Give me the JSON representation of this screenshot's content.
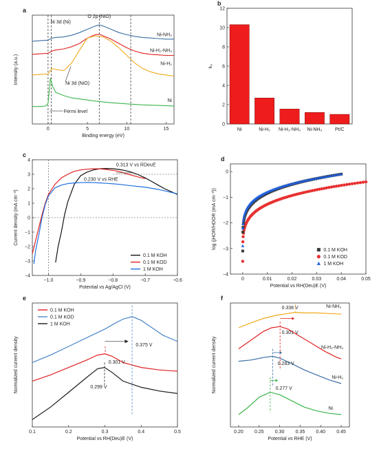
{
  "panels": [
    {
      "id": "a",
      "label": "a",
      "type": "line",
      "xlabel": "Binding energy (eV)",
      "ylabel": "Intensity (a.u.)",
      "xlim": [
        -2,
        16
      ],
      "ylim": [
        0,
        10
      ],
      "xticks": [
        "0",
        "5",
        "10",
        "15"
      ],
      "annotations": [
        "Ni 3d (Ni)",
        "O 2p (NiO)",
        "Ni 3d (NiO)",
        "Fermi level"
      ],
      "series": [
        {
          "name": "Ni-NH3",
          "label": "Ni-NH₃",
          "color": "#3b6ea5",
          "x": [
            -2,
            -1,
            0,
            0.5,
            1,
            2,
            3,
            4,
            5,
            6,
            6.5,
            7,
            8,
            9,
            10,
            11,
            12,
            13,
            14,
            15,
            16
          ],
          "y": [
            7.6,
            7.65,
            7.7,
            7.9,
            7.95,
            8.0,
            8.15,
            8.4,
            8.7,
            9.0,
            9.1,
            9.0,
            8.7,
            8.4,
            8.2,
            8.05,
            7.95,
            7.9,
            7.85,
            7.8,
            7.8
          ]
        },
        {
          "name": "Ni-H2-NH3",
          "label": "Ni-H₂-NH₃",
          "color": "#e02020",
          "x": [
            -2,
            -1,
            0,
            0.5,
            1,
            2,
            3,
            4,
            5,
            6,
            6.5,
            7,
            8,
            9,
            10,
            11,
            12,
            13,
            14,
            15,
            16
          ],
          "y": [
            6.4,
            6.45,
            6.5,
            6.7,
            6.8,
            6.9,
            7.1,
            7.4,
            7.9,
            8.2,
            8.25,
            8.1,
            7.8,
            7.4,
            7.0,
            6.7,
            6.5,
            6.4,
            6.35,
            6.3,
            6.3
          ]
        },
        {
          "name": "Ni-H2",
          "label": "Ni-H₂",
          "color": "#f0a818",
          "x": [
            -2,
            -1,
            0,
            0.5,
            1,
            2,
            3,
            4,
            5,
            6,
            7,
            8,
            9,
            10,
            11,
            12,
            13,
            14,
            15,
            16
          ],
          "y": [
            4.5,
            4.55,
            4.6,
            5.1,
            5.0,
            4.9,
            5.6,
            6.8,
            7.9,
            8.1,
            8.0,
            7.6,
            7.0,
            6.3,
            5.6,
            5.1,
            4.8,
            4.6,
            4.5,
            4.4
          ]
        },
        {
          "name": "Ni",
          "label": "Ni",
          "color": "#3cb44b",
          "x": [
            -2,
            -1,
            -0.3,
            0,
            0.3,
            0.6,
            1,
            2,
            3,
            4,
            5,
            6,
            8,
            10,
            12,
            14,
            16
          ],
          "y": [
            1.6,
            1.6,
            1.65,
            1.9,
            4.2,
            3.4,
            2.9,
            2.6,
            2.4,
            2.3,
            2.2,
            2.1,
            1.95,
            1.85,
            1.75,
            1.7,
            1.65
          ]
        }
      ],
      "vlines": [
        {
          "x": 0,
          "color": "#222"
        },
        {
          "x": 0.4,
          "color": "#222"
        },
        {
          "x": 6.5,
          "color": "#222"
        },
        {
          "x": 10.5,
          "color": "#222"
        }
      ]
    },
    {
      "id": "b",
      "label": "b",
      "type": "bar",
      "ylabel": "k₀",
      "ylim": [
        0,
        12
      ],
      "yticks": [
        "0",
        "2",
        "4",
        "6",
        "8",
        "10",
        "12"
      ],
      "categories": [
        "Ni",
        "Ni-H₂",
        "Ni-H₂-NH₃",
        "Ni-NH₃",
        "Pt/C"
      ],
      "values": [
        10.3,
        2.7,
        1.55,
        1.2,
        1.0
      ],
      "bar_color": "#ee1c1c"
    },
    {
      "id": "c",
      "label": "c",
      "type": "line",
      "xlabel": "Potential vs Ag/AgCl (V)",
      "ylabel": "Current density (mA cm⁻²)",
      "xlim": [
        -1.05,
        -0.6
      ],
      "ylim": [
        -4,
        4
      ],
      "xticks": [
        "−1.0",
        "−0.9",
        "−0.8",
        "−0.7",
        "−0.6"
      ],
      "yticks": [
        "−4",
        "−3",
        "−2",
        "−1",
        "0",
        "1",
        "2",
        "3",
        "4"
      ],
      "annotations": [
        "0.313 V vs RDeuE",
        "0.230 V vs RHE"
      ],
      "legend_position": "bottom-right",
      "series": [
        {
          "name": "0.1 M KOH",
          "color": "#111111",
          "x": [
            -0.978,
            -0.97,
            -0.96,
            -0.95,
            -0.94,
            -0.92,
            -0.9,
            -0.88,
            -0.86,
            -0.84,
            -0.82,
            -0.8,
            -0.78,
            -0.76,
            -0.74,
            -0.72,
            -0.7,
            -0.68,
            -0.66,
            -0.64,
            -0.62,
            -0.6
          ],
          "y": [
            -3.1,
            -2.0,
            -1.0,
            0.2,
            1.1,
            2.3,
            2.9,
            3.15,
            3.3,
            3.38,
            3.4,
            3.38,
            3.33,
            3.25,
            3.12,
            2.95,
            2.75,
            2.5,
            2.25,
            2.0,
            1.8,
            1.6
          ]
        },
        {
          "name": "0.1 M KOD",
          "color": "#e02020",
          "x": [
            -1.05,
            -1.04,
            -1.03,
            -1.02,
            -1.01,
            -1.0,
            -0.98,
            -0.96,
            -0.94,
            -0.92,
            -0.9,
            -0.88,
            -0.86,
            -0.84,
            -0.82,
            -0.8,
            -0.78,
            -0.76,
            -0.74,
            -0.72,
            -0.7
          ],
          "y": [
            -2.5,
            -1.6,
            -0.7,
            0.2,
            1.0,
            1.6,
            2.3,
            2.75,
            3.0,
            3.2,
            3.3,
            3.35,
            3.38,
            3.37,
            3.33,
            3.27,
            3.18,
            3.05,
            2.92,
            2.8,
            2.7
          ]
        },
        {
          "name": "1 M KOH",
          "color": "#1f6fe0",
          "x": [
            -1.045,
            -1.04,
            -1.03,
            -1.02,
            -1.01,
            -1.0,
            -0.98,
            -0.96,
            -0.94,
            -0.92,
            -0.9,
            -0.88,
            -0.86,
            -0.84,
            -0.82,
            -0.8,
            -0.78,
            -0.76,
            -0.74,
            -0.72,
            -0.7,
            -0.68,
            -0.66,
            -0.64,
            -0.62,
            -0.6
          ],
          "y": [
            -3.2,
            -2.3,
            -1.2,
            0.0,
            0.9,
            1.5,
            2.05,
            2.25,
            2.35,
            2.4,
            2.42,
            2.43,
            2.42,
            2.4,
            2.37,
            2.34,
            2.3,
            2.25,
            2.2,
            2.15,
            2.1,
            2.03,
            1.95,
            1.85,
            1.75,
            1.65
          ]
        }
      ],
      "dashed_lines": [
        {
          "type": "h",
          "y": 0,
          "color": "#444"
        },
        {
          "type": "v",
          "x": -1.0,
          "color": "#444"
        },
        {
          "type": "h",
          "y": 3.0,
          "x_start": -0.8,
          "color": "#444"
        }
      ]
    },
    {
      "id": "d",
      "label": "d",
      "type": "scatter",
      "xlabel": "Potential vs RH(Deu)E (V)",
      "ylabel": "log (jHOR/HDOR (mA cm⁻²))",
      "xlim": [
        -0.005,
        0.05
      ],
      "ylim": [
        -4,
        0.3
      ],
      "xticks": [
        "0",
        "0.01",
        "0.02",
        "0.03",
        "0.04",
        "0.05"
      ],
      "yticks": [
        "−4",
        "−3",
        "−2",
        "−1",
        "0"
      ],
      "legend_position": "bottom-right",
      "series": [
        {
          "name": "0.1 M KOH",
          "color": "#3a3a3a",
          "marker": "square",
          "x_max": 0.04,
          "y_end": -0.1,
          "y_start": -3.1
        },
        {
          "name": "0.1 M KOD",
          "color": "#e83030",
          "marker": "circle",
          "x_max": 0.05,
          "y_end": -0.4,
          "y_start": -3.5
        },
        {
          "name": "1 M KOH",
          "color": "#2060e0",
          "marker": "triangle",
          "x_max": 0.04,
          "y_end": -0.1,
          "y_start": -2.9
        }
      ]
    },
    {
      "id": "e",
      "label": "e",
      "type": "line",
      "xlabel": "Potential vs RH(Deu)E (V)",
      "ylabel": "Normalized current density",
      "xlim": [
        0.1,
        0.5
      ],
      "ylim": [
        0,
        10
      ],
      "xticks": [
        "0.1",
        "0.2",
        "0.3",
        "0.4",
        "0.5"
      ],
      "annotations": [
        "0.375 V",
        "0.301 V",
        "0.299 V"
      ],
      "legend_position": "top-left",
      "series": [
        {
          "name": "0.1 M KOH",
          "color": "#e02020",
          "x": [
            0.1,
            0.15,
            0.2,
            0.25,
            0.28,
            0.3,
            0.32,
            0.35,
            0.4,
            0.45,
            0.5
          ],
          "y": [
            3.7,
            4.2,
            4.8,
            5.4,
            5.8,
            5.9,
            5.7,
            5.2,
            4.8,
            4.6,
            4.5
          ]
        },
        {
          "name": "0.1 M KOD",
          "color": "#4a86c8",
          "x": [
            0.1,
            0.15,
            0.2,
            0.25,
            0.3,
            0.33,
            0.35,
            0.375,
            0.4,
            0.43,
            0.46,
            0.5
          ],
          "y": [
            5.2,
            5.8,
            6.5,
            7.2,
            7.9,
            8.4,
            8.7,
            8.9,
            8.6,
            8.0,
            7.4,
            6.9
          ]
        },
        {
          "name": "1 M KOH",
          "color": "#1a1a1a",
          "x": [
            0.1,
            0.15,
            0.2,
            0.25,
            0.28,
            0.299,
            0.32,
            0.35,
            0.4,
            0.45,
            0.5
          ],
          "y": [
            0.6,
            1.6,
            2.8,
            4.0,
            4.7,
            4.8,
            4.4,
            3.7,
            3.2,
            2.9,
            2.7
          ]
        }
      ],
      "peaks": [
        {
          "x": 0.375,
          "color": "#4a86c8"
        },
        {
          "x": 0.301,
          "color": "#e02020"
        },
        {
          "x": 0.299,
          "color": "#1a1a1a"
        }
      ]
    },
    {
      "id": "f",
      "label": "f",
      "type": "line",
      "xlabel": "Potential vs RHE (V)",
      "ylabel": "Normalized current density",
      "xlim": [
        0.18,
        0.47
      ],
      "ylim": [
        0,
        10
      ],
      "xticks": [
        "0.20",
        "0.25",
        "0.30",
        "0.35",
        "0.40",
        "0.45"
      ],
      "annotations": [
        "0.338 V",
        "0.301 V",
        "0.283 V",
        "0.277 V"
      ],
      "series": [
        {
          "name": "Ni-NH3",
          "label": "Ni-NH₃",
          "color": "#f0a818",
          "x": [
            0.2,
            0.23,
            0.26,
            0.29,
            0.31,
            0.338,
            0.36,
            0.39,
            0.42,
            0.45
          ],
          "y": [
            8.0,
            8.4,
            8.75,
            9.0,
            9.1,
            9.25,
            9.2,
            9.2,
            9.15,
            9.1
          ]
        },
        {
          "name": "Ni-H2-NH3",
          "label": "Ni-H₂-NH₃",
          "color": "#e02020",
          "x": [
            0.2,
            0.23,
            0.26,
            0.28,
            0.301,
            0.32,
            0.35,
            0.38,
            0.41,
            0.44,
            0.45
          ],
          "y": [
            6.3,
            7.0,
            7.7,
            8.0,
            8.1,
            7.9,
            7.3,
            6.7,
            6.1,
            5.6,
            5.5
          ]
        },
        {
          "name": "Ni-H2",
          "label": "Ni-H₂",
          "color": "#3b6ea5",
          "x": [
            0.2,
            0.23,
            0.26,
            0.283,
            0.3,
            0.33,
            0.36,
            0.39,
            0.42,
            0.45
          ],
          "y": [
            5.3,
            5.4,
            5.6,
            5.7,
            5.55,
            5.1,
            4.6,
            4.2,
            3.8,
            3.5
          ]
        },
        {
          "name": "Ni",
          "label": "Ni",
          "color": "#3cb44b",
          "x": [
            0.2,
            0.22,
            0.25,
            0.277,
            0.3,
            0.33,
            0.36,
            0.39,
            0.42,
            0.45
          ],
          "y": [
            1.0,
            1.5,
            2.4,
            2.8,
            2.6,
            2.1,
            1.6,
            1.3,
            1.1,
            1.0
          ]
        }
      ],
      "peaks": [
        {
          "x": 0.338,
          "color": "#f0a818"
        },
        {
          "x": 0.301,
          "color": "#e02020"
        },
        {
          "x": 0.283,
          "color": "#3b6ea5"
        },
        {
          "x": 0.277,
          "color": "#3cb44b"
        }
      ]
    }
  ]
}
